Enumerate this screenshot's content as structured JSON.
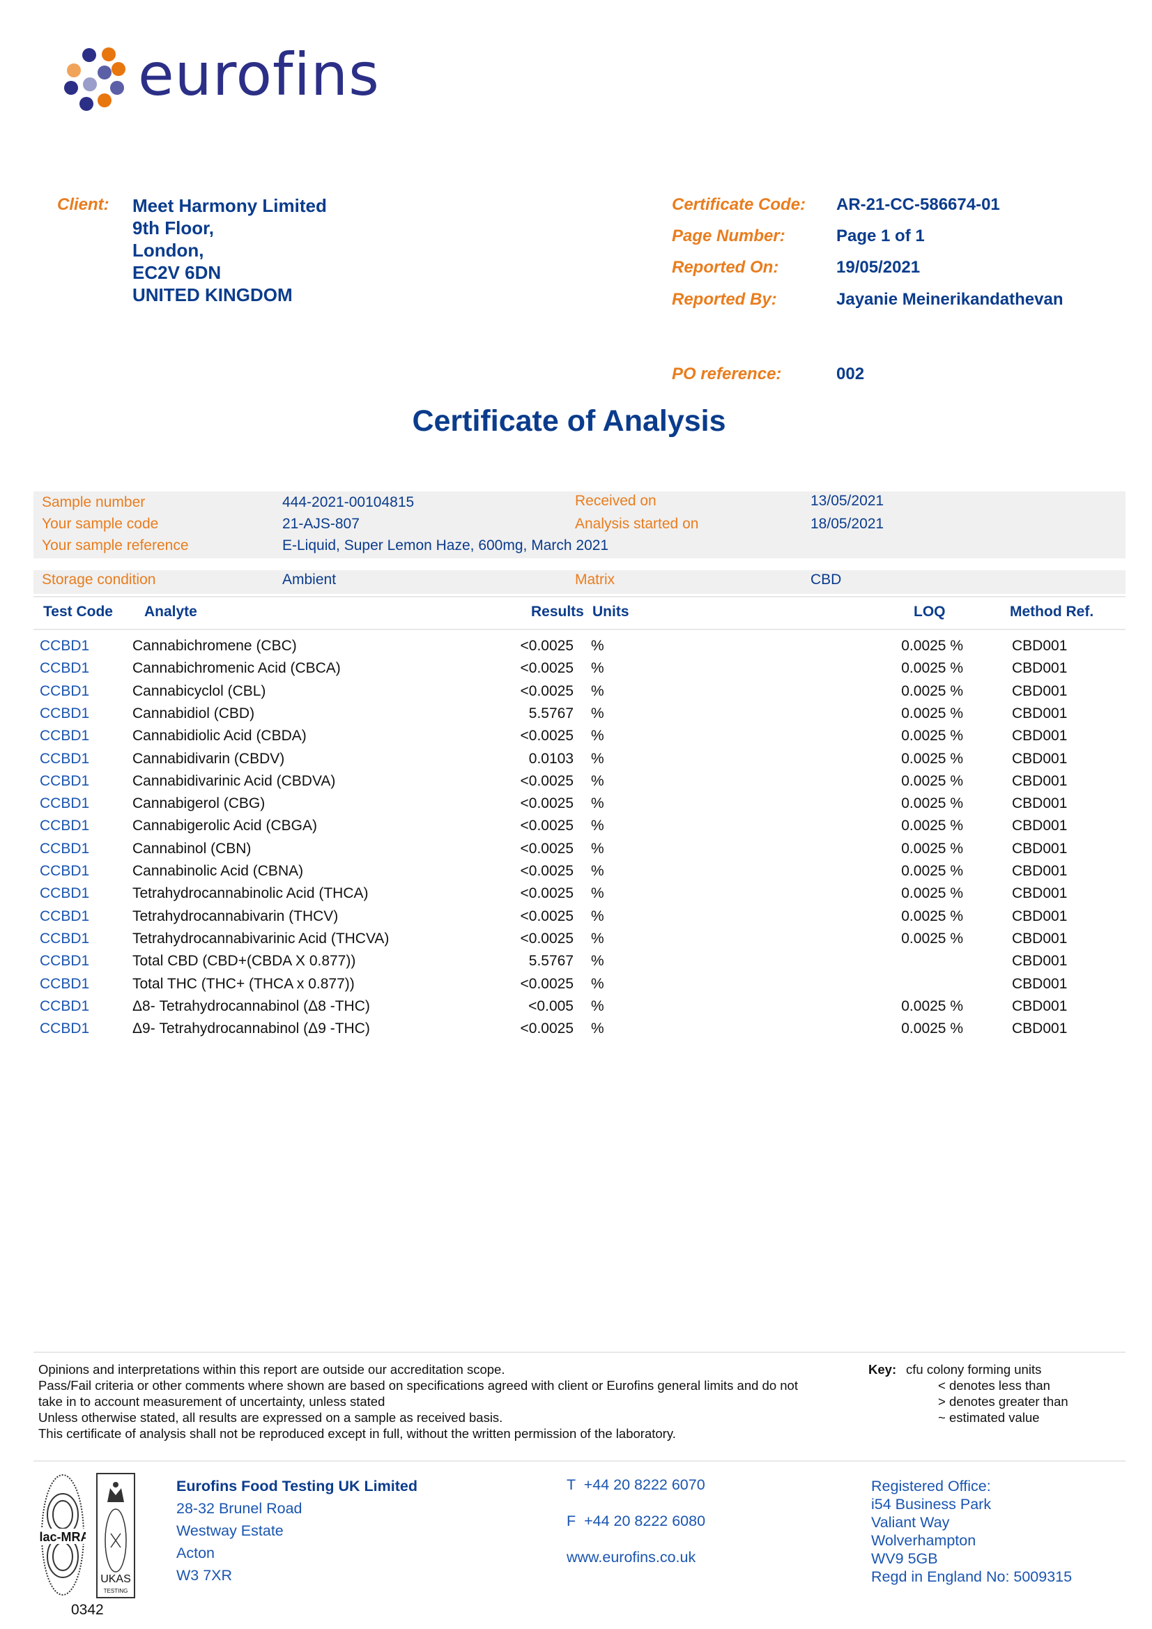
{
  "logo": {
    "text": "eurofins",
    "colors": {
      "navy": "#2b2f86",
      "orange": "#e8760e",
      "light_orange": "#f0a45a",
      "purple": "#5a5fa6",
      "lavender": "#9a9cc9"
    }
  },
  "client": {
    "label": "Client:",
    "lines": [
      "Meet Harmony Limited",
      "9th Floor,",
      "London,",
      "EC2V 6DN",
      "UNITED KINGDOM"
    ]
  },
  "meta": [
    {
      "label": "Certificate Code:",
      "value": "AR-21-CC-586674-01"
    },
    {
      "label": "Page Number:",
      "value": "Page 1 of 1"
    },
    {
      "label": "Reported On:",
      "value": "19/05/2021"
    },
    {
      "label": "Reported By:",
      "value": "Jayanie Meinerikandathevan"
    }
  ],
  "po": {
    "label": "PO reference:",
    "value": "002"
  },
  "title": "Certificate of Analysis",
  "sample": {
    "sample_number_label": "Sample number",
    "sample_number": "444-2021-00104815",
    "received_label": "Received on",
    "received": "13/05/2021",
    "code_label": "Your sample code",
    "code": "21-AJS-807",
    "analysis_label": "Analysis started on",
    "analysis": "18/05/2021",
    "reference_label": "Your sample reference",
    "reference": "E-Liquid, Super Lemon Haze, 600mg, March 2021",
    "storage_label": "Storage condition",
    "storage": "Ambient",
    "matrix_label": "Matrix",
    "matrix": "CBD"
  },
  "table": {
    "headers": {
      "code": "Test Code",
      "analyte": "Analyte",
      "results": "Results",
      "units": "Units",
      "loq": "LOQ",
      "method": "Method Ref."
    },
    "rows": [
      {
        "code": "CCBD1",
        "analyte": "Cannabichromene (CBC)",
        "result": "<0.0025",
        "units": "%",
        "loq": "0.0025 %",
        "method": "CBD001"
      },
      {
        "code": "CCBD1",
        "analyte": "Cannabichromenic Acid (CBCA)",
        "result": "<0.0025",
        "units": "%",
        "loq": "0.0025 %",
        "method": "CBD001"
      },
      {
        "code": "CCBD1",
        "analyte": "Cannabicyclol (CBL)",
        "result": "<0.0025",
        "units": "%",
        "loq": "0.0025 %",
        "method": "CBD001"
      },
      {
        "code": "CCBD1",
        "analyte": "Cannabidiol (CBD)",
        "result": "5.5767",
        "units": "%",
        "loq": "0.0025 %",
        "method": "CBD001"
      },
      {
        "code": "CCBD1",
        "analyte": "Cannabidiolic Acid (CBDA)",
        "result": "<0.0025",
        "units": "%",
        "loq": "0.0025 %",
        "method": "CBD001"
      },
      {
        "code": "CCBD1",
        "analyte": "Cannabidivarin (CBDV)",
        "result": "0.0103",
        "units": "%",
        "loq": "0.0025 %",
        "method": "CBD001"
      },
      {
        "code": "CCBD1",
        "analyte": "Cannabidivarinic Acid (CBDVA)",
        "result": "<0.0025",
        "units": "%",
        "loq": "0.0025 %",
        "method": "CBD001"
      },
      {
        "code": "CCBD1",
        "analyte": "Cannabigerol (CBG)",
        "result": "<0.0025",
        "units": "%",
        "loq": "0.0025 %",
        "method": "CBD001"
      },
      {
        "code": "CCBD1",
        "analyte": "Cannabigerolic Acid (CBGA)",
        "result": "<0.0025",
        "units": "%",
        "loq": "0.0025 %",
        "method": "CBD001"
      },
      {
        "code": "CCBD1",
        "analyte": "Cannabinol (CBN)",
        "result": "<0.0025",
        "units": "%",
        "loq": "0.0025 %",
        "method": "CBD001"
      },
      {
        "code": "CCBD1",
        "analyte": "Cannabinolic Acid (CBNA)",
        "result": "<0.0025",
        "units": "%",
        "loq": "0.0025 %",
        "method": "CBD001"
      },
      {
        "code": "CCBD1",
        "analyte": "Tetrahydrocannabinolic Acid (THCA)",
        "result": "<0.0025",
        "units": "%",
        "loq": "0.0025 %",
        "method": "CBD001"
      },
      {
        "code": "CCBD1",
        "analyte": "Tetrahydrocannabivarin (THCV)",
        "result": "<0.0025",
        "units": "%",
        "loq": "0.0025 %",
        "method": "CBD001"
      },
      {
        "code": "CCBD1",
        "analyte": "Tetrahydrocannabivarinic Acid (THCVA)",
        "result": "<0.0025",
        "units": "%",
        "loq": "0.0025 %",
        "method": "CBD001"
      },
      {
        "code": "CCBD1",
        "analyte": "Total CBD (CBD+(CBDA X 0.877))",
        "result": "5.5767",
        "units": "%",
        "loq": "",
        "method": "CBD001"
      },
      {
        "code": "CCBD1",
        "analyte": "Total THC (THC+ (THCA x 0.877))",
        "result": "<0.0025",
        "units": "%",
        "loq": "",
        "method": "CBD001"
      },
      {
        "code": "CCBD1",
        "analyte": "Δ8- Tetrahydrocannabinol (Δ8 -THC)",
        "result": "<0.005",
        "units": "%",
        "loq": "0.0025 %",
        "method": "CBD001"
      },
      {
        "code": "CCBD1",
        "analyte": "Δ9- Tetrahydrocannabinol (Δ9 -THC)",
        "result": "<0.0025",
        "units": "%",
        "loq": "0.0025 %",
        "method": "CBD001"
      }
    ]
  },
  "notes": [
    "Opinions and interpretations within this report are outside our accreditation scope.",
    "Pass/Fail criteria or other comments where shown are based on specifications agreed with client or Eurofins general limits and do not",
    "take in to account measurement of uncertainty, unless stated",
    "Unless otherwise stated, all results are expressed on a sample as received basis.",
    "This certificate of analysis shall not be reproduced except in full, without the written permission of the laboratory."
  ],
  "key": {
    "label": "Key:",
    "items": [
      "cfu colony forming units",
      "< denotes less than",
      "> denotes greater than",
      "~ estimated value"
    ]
  },
  "footer": {
    "company": [
      "Eurofins Food Testing UK Limited",
      "28-32 Brunel Road",
      "Westway Estate",
      "Acton",
      "W3 7XR"
    ],
    "phone": "T  +44 20 8222 6070",
    "fax": "F  +44 20 8222 6080",
    "web": "www.eurofins.co.uk",
    "registered": [
      "Registered Office:",
      "i54 Business Park",
      "Valiant Way",
      "Wolverhampton",
      "WV9 5GB",
      "Regd in England No: 5009315"
    ],
    "accreditation": {
      "ilac": "ilac-MRA",
      "ukas": "UKAS",
      "ukas_sub": "TESTING",
      "number": "0342"
    }
  }
}
